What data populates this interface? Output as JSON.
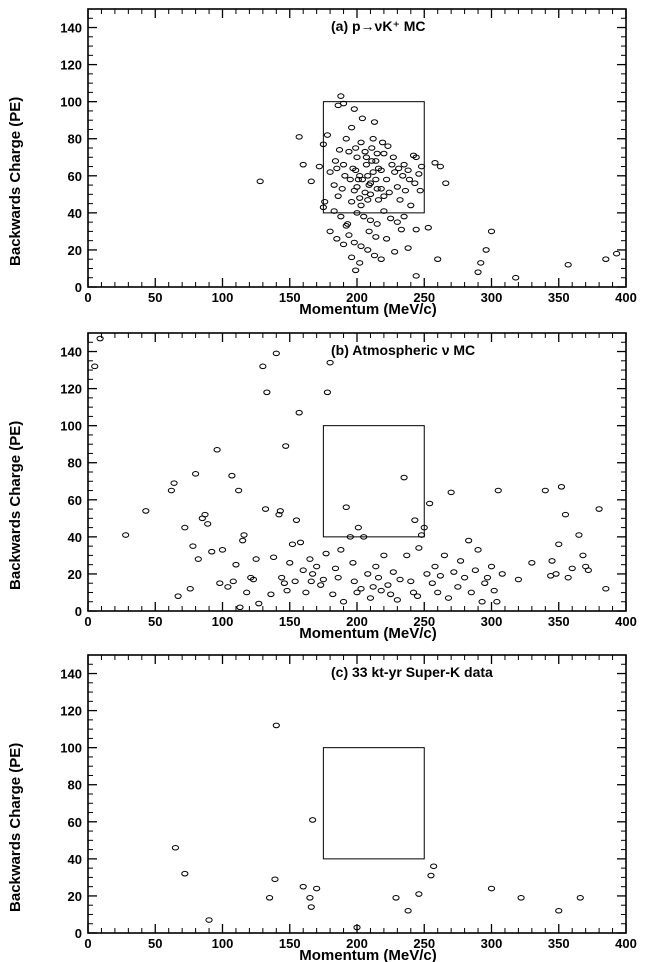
{
  "chart_data": [
    {
      "type": "scatter",
      "title": "(a) p→νK⁺ MC",
      "xlabel": "Momentum (MeV/c)",
      "ylabel": "Backwards Charge (PE)",
      "xlim": [
        0,
        400
      ],
      "ylim": [
        0,
        150
      ],
      "xticks": [
        0,
        50,
        100,
        150,
        200,
        250,
        300,
        350,
        400
      ],
      "yticks": [
        0,
        20,
        40,
        60,
        80,
        100,
        120,
        140
      ],
      "grid": false,
      "marker": "open-ellipse",
      "selection_box": {
        "x": [
          175,
          250
        ],
        "y": [
          40,
          100
        ]
      },
      "points": [
        [
          128,
          57
        ],
        [
          157,
          81
        ],
        [
          160,
          66
        ],
        [
          166,
          57
        ],
        [
          172,
          65
        ],
        [
          175,
          77
        ],
        [
          176,
          46
        ],
        [
          175,
          43
        ],
        [
          178,
          82
        ],
        [
          180,
          62
        ],
        [
          183,
          55
        ],
        [
          185,
          64
        ],
        [
          186,
          98
        ],
        [
          188,
          103
        ],
        [
          190,
          99
        ],
        [
          192,
          80
        ],
        [
          194,
          73
        ],
        [
          196,
          86
        ],
        [
          198,
          96
        ],
        [
          199,
          63
        ],
        [
          200,
          70
        ],
        [
          201,
          58
        ],
        [
          202,
          48
        ],
        [
          203,
          44
        ],
        [
          204,
          91
        ],
        [
          206,
          73
        ],
        [
          207,
          66
        ],
        [
          208,
          60
        ],
        [
          209,
          55
        ],
        [
          210,
          50
        ],
        [
          211,
          75
        ],
        [
          212,
          80
        ],
        [
          213,
          89
        ],
        [
          214,
          68
        ],
        [
          215,
          53
        ],
        [
          216,
          47
        ],
        [
          218,
          63
        ],
        [
          220,
          72
        ],
        [
          222,
          58
        ],
        [
          224,
          51
        ],
        [
          226,
          66
        ],
        [
          228,
          62
        ],
        [
          230,
          54
        ],
        [
          232,
          47
        ],
        [
          234,
          60
        ],
        [
          236,
          52
        ],
        [
          238,
          63
        ],
        [
          240,
          44
        ],
        [
          242,
          71
        ],
        [
          244,
          70
        ],
        [
          246,
          61
        ],
        [
          248,
          65
        ],
        [
          196,
          46
        ],
        [
          198,
          52
        ],
        [
          200,
          54
        ],
        [
          202,
          60
        ],
        [
          204,
          58
        ],
        [
          206,
          51
        ],
        [
          208,
          47
        ],
        [
          210,
          56
        ],
        [
          212,
          62
        ],
        [
          214,
          58
        ],
        [
          216,
          64
        ],
        [
          218,
          53
        ],
        [
          220,
          49
        ],
        [
          200,
          40
        ],
        [
          205,
          38
        ],
        [
          210,
          36
        ],
        [
          215,
          34
        ],
        [
          220,
          41
        ],
        [
          225,
          37
        ],
        [
          230,
          35
        ],
        [
          235,
          38
        ],
        [
          193,
          34
        ],
        [
          188,
          38
        ],
        [
          183,
          41
        ],
        [
          186,
          49
        ],
        [
          189,
          53
        ],
        [
          191,
          60
        ],
        [
          184,
          68
        ],
        [
          187,
          74
        ],
        [
          190,
          66
        ],
        [
          195,
          58
        ],
        [
          197,
          64
        ],
        [
          199,
          75
        ],
        [
          203,
          78
        ],
        [
          207,
          70
        ],
        [
          211,
          68
        ],
        [
          215,
          72
        ],
        [
          219,
          78
        ],
        [
          223,
          76
        ],
        [
          227,
          70
        ],
        [
          231,
          64
        ],
        [
          235,
          66
        ],
        [
          239,
          58
        ],
        [
          243,
          56
        ],
        [
          247,
          52
        ],
        [
          194,
          28
        ],
        [
          198,
          24
        ],
        [
          203,
          22
        ],
        [
          208,
          20
        ],
        [
          213,
          17
        ],
        [
          218,
          15
        ],
        [
          222,
          26
        ],
        [
          228,
          19
        ],
        [
          233,
          31
        ],
        [
          238,
          21
        ],
        [
          196,
          16
        ],
        [
          199,
          9
        ],
        [
          202,
          13
        ],
        [
          192,
          33
        ],
        [
          209,
          30
        ],
        [
          214,
          27
        ],
        [
          244,
          31
        ],
        [
          180,
          30
        ],
        [
          185,
          26
        ],
        [
          190,
          23
        ],
        [
          253,
          32
        ],
        [
          258,
          67
        ],
        [
          262,
          65
        ],
        [
          260,
          15
        ],
        [
          266,
          56
        ],
        [
          244,
          6
        ],
        [
          290,
          8
        ],
        [
          292,
          13
        ],
        [
          296,
          20
        ],
        [
          300,
          30
        ],
        [
          318,
          5
        ],
        [
          357,
          12
        ],
        [
          385,
          15
        ],
        [
          393,
          18
        ]
      ]
    },
    {
      "type": "scatter",
      "title": "(b) Atmospheric ν MC",
      "xlabel": "Momentum (MeV/c)",
      "ylabel": "Backwards Charge (PE)",
      "xlim": [
        0,
        400
      ],
      "ylim": [
        0,
        150
      ],
      "xticks": [
        0,
        50,
        100,
        150,
        200,
        250,
        300,
        350,
        400
      ],
      "yticks": [
        0,
        20,
        40,
        60,
        80,
        100,
        120,
        140
      ],
      "grid": false,
      "marker": "open-ellipse",
      "selection_box": {
        "x": [
          175,
          250
        ],
        "y": [
          40,
          100
        ]
      },
      "points": [
        [
          5,
          132
        ],
        [
          9,
          147
        ],
        [
          28,
          41
        ],
        [
          43,
          54
        ],
        [
          62,
          65
        ],
        [
          64,
          69
        ],
        [
          67,
          8
        ],
        [
          72,
          45
        ],
        [
          76,
          12
        ],
        [
          78,
          35
        ],
        [
          80,
          74
        ],
        [
          82,
          28
        ],
        [
          85,
          50
        ],
        [
          87,
          52
        ],
        [
          89,
          47
        ],
        [
          92,
          32
        ],
        [
          96,
          87
        ],
        [
          98,
          15
        ],
        [
          100,
          33
        ],
        [
          104,
          13
        ],
        [
          107,
          73
        ],
        [
          108,
          16
        ],
        [
          110,
          25
        ],
        [
          112,
          65
        ],
        [
          113,
          2
        ],
        [
          115,
          38
        ],
        [
          116,
          41
        ],
        [
          118,
          10
        ],
        [
          121,
          18
        ],
        [
          123,
          17
        ],
        [
          125,
          28
        ],
        [
          127,
          4
        ],
        [
          130,
          132
        ],
        [
          132,
          55
        ],
        [
          133,
          118
        ],
        [
          136,
          9
        ],
        [
          138,
          29
        ],
        [
          140,
          139
        ],
        [
          142,
          52
        ],
        [
          143,
          54
        ],
        [
          144,
          18
        ],
        [
          146,
          15
        ],
        [
          147,
          89
        ],
        [
          148,
          11
        ],
        [
          150,
          26
        ],
        [
          152,
          36
        ],
        [
          154,
          16
        ],
        [
          155,
          49
        ],
        [
          157,
          107
        ],
        [
          158,
          37
        ],
        [
          160,
          22
        ],
        [
          162,
          10
        ],
        [
          165,
          28
        ],
        [
          166,
          16
        ],
        [
          167,
          20
        ],
        [
          170,
          24
        ],
        [
          173,
          14
        ],
        [
          175,
          17
        ],
        [
          177,
          31
        ],
        [
          178,
          118
        ],
        [
          180,
          134
        ],
        [
          182,
          9
        ],
        [
          184,
          23
        ],
        [
          186,
          18
        ],
        [
          188,
          33
        ],
        [
          190,
          5
        ],
        [
          192,
          56
        ],
        [
          195,
          40
        ],
        [
          197,
          26
        ],
        [
          198,
          16
        ],
        [
          200,
          10
        ],
        [
          201,
          45
        ],
        [
          203,
          12
        ],
        [
          205,
          40
        ],
        [
          208,
          20
        ],
        [
          210,
          7
        ],
        [
          212,
          13
        ],
        [
          214,
          24
        ],
        [
          216,
          18
        ],
        [
          218,
          11
        ],
        [
          220,
          30
        ],
        [
          223,
          14
        ],
        [
          225,
          9
        ],
        [
          227,
          21
        ],
        [
          230,
          6
        ],
        [
          232,
          17
        ],
        [
          235,
          72
        ],
        [
          237,
          30
        ],
        [
          240,
          16
        ],
        [
          242,
          10
        ],
        [
          243,
          49
        ],
        [
          245,
          8
        ],
        [
          246,
          34
        ],
        [
          248,
          41
        ],
        [
          250,
          45
        ],
        [
          252,
          20
        ],
        [
          254,
          58
        ],
        [
          256,
          15
        ],
        [
          258,
          24
        ],
        [
          260,
          10
        ],
        [
          262,
          19
        ],
        [
          265,
          30
        ],
        [
          268,
          7
        ],
        [
          270,
          64
        ],
        [
          272,
          21
        ],
        [
          275,
          13
        ],
        [
          277,
          27
        ],
        [
          280,
          18
        ],
        [
          283,
          38
        ],
        [
          285,
          10
        ],
        [
          288,
          22
        ],
        [
          290,
          33
        ],
        [
          293,
          5
        ],
        [
          295,
          15
        ],
        [
          297,
          18
        ],
        [
          300,
          24
        ],
        [
          302,
          11
        ],
        [
          304,
          5
        ],
        [
          305,
          65
        ],
        [
          340,
          65
        ],
        [
          344,
          19
        ],
        [
          345,
          27
        ],
        [
          348,
          20
        ],
        [
          350,
          36
        ],
        [
          352,
          67
        ],
        [
          355,
          52
        ],
        [
          357,
          18
        ],
        [
          360,
          23
        ],
        [
          365,
          41
        ],
        [
          368,
          30
        ],
        [
          370,
          24
        ],
        [
          372,
          22
        ],
        [
          380,
          55
        ],
        [
          385,
          12
        ],
        [
          308,
          20
        ],
        [
          320,
          17
        ],
        [
          330,
          26
        ]
      ]
    },
    {
      "type": "scatter",
      "title": "(c) 33 kt-yr Super-K data",
      "xlabel": "Momentum (MeV/c)",
      "ylabel": "Backwards Charge (PE)",
      "xlim": [
        0,
        400
      ],
      "ylim": [
        0,
        150
      ],
      "xticks": [
        0,
        50,
        100,
        150,
        200,
        250,
        300,
        350,
        400
      ],
      "yticks": [
        0,
        20,
        40,
        60,
        80,
        100,
        120,
        140
      ],
      "grid": false,
      "marker": "open-ellipse",
      "selection_box": {
        "x": [
          175,
          250
        ],
        "y": [
          40,
          100
        ]
      },
      "points": [
        [
          65,
          46
        ],
        [
          72,
          32
        ],
        [
          90,
          7
        ],
        [
          135,
          19
        ],
        [
          139,
          29
        ],
        [
          140,
          112
        ],
        [
          160,
          25
        ],
        [
          165,
          19
        ],
        [
          166,
          14
        ],
        [
          167,
          61
        ],
        [
          170,
          24
        ],
        [
          200,
          3
        ],
        [
          229,
          19
        ],
        [
          238,
          12
        ],
        [
          246,
          21
        ],
        [
          255,
          31
        ],
        [
          257,
          36
        ],
        [
          300,
          24
        ],
        [
          322,
          19
        ],
        [
          350,
          12
        ],
        [
          366,
          19
        ]
      ]
    }
  ]
}
